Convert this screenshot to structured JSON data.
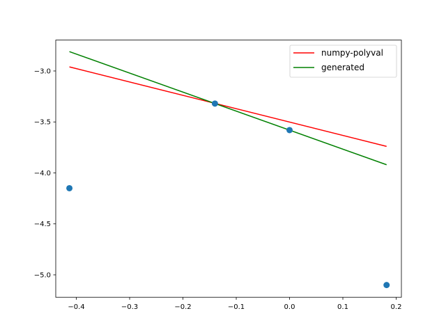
{
  "chart_data": {
    "type": "line",
    "title": "",
    "xlabel": "",
    "ylabel": "",
    "xlim": [
      -0.4386,
      0.2098
    ],
    "ylim": [
      -5.22,
      -2.697
    ],
    "xticks": [
      -0.4,
      -0.3,
      -0.2,
      -0.1,
      0.0,
      0.1,
      0.2
    ],
    "xtick_labels": [
      "−0.4",
      "−0.3",
      "−0.2",
      "−0.1",
      "0.0",
      "0.1",
      "0.2"
    ],
    "yticks": [
      -3.0,
      -3.5,
      -4.0,
      -4.5,
      -5.0
    ],
    "ytick_labels": [
      "−3.0",
      "−3.5",
      "−4.0",
      "−4.5",
      "−5.0"
    ],
    "grid": false,
    "legend_position": "top-right",
    "scatter": {
      "color": "#1f77b4",
      "x": [
        -0.413,
        -0.14,
        0.0,
        0.182
      ],
      "y": [
        -4.15,
        -3.32,
        -3.58,
        -5.1
      ]
    },
    "series": [
      {
        "name": "numpy-polyval",
        "color": "#ff0000",
        "x": [
          -0.413,
          0.182
        ],
        "y": [
          -2.96,
          -3.74
        ]
      },
      {
        "name": "generated",
        "color": "#008000",
        "x": [
          -0.413,
          0.182
        ],
        "y": [
          -2.81,
          -3.92
        ]
      }
    ]
  }
}
